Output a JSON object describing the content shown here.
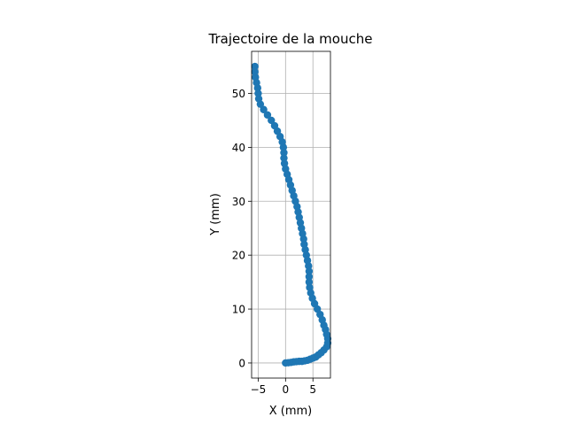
{
  "chart_data": {
    "type": "scatter",
    "title": "Trajectoire de la mouche",
    "xlabel": "X (mm)",
    "ylabel": "Y (mm)",
    "xlim": [
      -6.2,
      8.2
    ],
    "ylim": [
      -2.8,
      57.8
    ],
    "xticks": [
      -5,
      0,
      5
    ],
    "yticks": [
      0,
      10,
      20,
      30,
      40,
      50
    ],
    "grid": true,
    "marker_color": "#1f77b4",
    "points": [
      [
        0.0,
        0.0
      ],
      [
        0.5,
        0.05
      ],
      [
        1.0,
        0.1
      ],
      [
        1.5,
        0.2
      ],
      [
        2.0,
        0.25
      ],
      [
        2.5,
        0.3
      ],
      [
        3.0,
        0.3
      ],
      [
        3.5,
        0.4
      ],
      [
        4.0,
        0.5
      ],
      [
        4.5,
        0.7
      ],
      [
        5.0,
        0.9
      ],
      [
        5.5,
        1.1
      ],
      [
        6.0,
        1.5
      ],
      [
        6.5,
        1.9
      ],
      [
        7.0,
        2.4
      ],
      [
        7.5,
        3.0
      ],
      [
        7.7,
        3.7
      ],
      [
        7.7,
        4.5
      ],
      [
        7.5,
        5.3
      ],
      [
        7.3,
        6.2
      ],
      [
        7.0,
        7.0
      ],
      [
        6.7,
        8.0
      ],
      [
        6.3,
        9.0
      ],
      [
        5.8,
        10.0
      ],
      [
        5.3,
        11.0
      ],
      [
        4.9,
        12.0
      ],
      [
        4.6,
        13.0
      ],
      [
        4.4,
        14.0
      ],
      [
        4.3,
        15.0
      ],
      [
        4.3,
        16.0
      ],
      [
        4.3,
        17.0
      ],
      [
        4.2,
        18.0
      ],
      [
        4.0,
        19.0
      ],
      [
        3.8,
        20.0
      ],
      [
        3.6,
        21.0
      ],
      [
        3.4,
        22.0
      ],
      [
        3.3,
        23.0
      ],
      [
        3.1,
        24.0
      ],
      [
        2.9,
        25.0
      ],
      [
        2.7,
        26.0
      ],
      [
        2.5,
        27.0
      ],
      [
        2.3,
        28.0
      ],
      [
        2.1,
        29.0
      ],
      [
        1.8,
        30.0
      ],
      [
        1.5,
        31.0
      ],
      [
        1.2,
        32.0
      ],
      [
        0.9,
        33.0
      ],
      [
        0.6,
        34.0
      ],
      [
        0.3,
        35.0
      ],
      [
        0.0,
        36.0
      ],
      [
        -0.2,
        37.0
      ],
      [
        -0.3,
        38.0
      ],
      [
        -0.3,
        39.0
      ],
      [
        -0.4,
        40.0
      ],
      [
        -0.6,
        41.0
      ],
      [
        -1.0,
        42.0
      ],
      [
        -1.5,
        43.0
      ],
      [
        -2.0,
        44.0
      ],
      [
        -2.6,
        45.0
      ],
      [
        -3.3,
        46.0
      ],
      [
        -4.0,
        47.0
      ],
      [
        -4.6,
        48.0
      ],
      [
        -4.9,
        49.0
      ],
      [
        -5.0,
        50.0
      ],
      [
        -5.1,
        51.0
      ],
      [
        -5.3,
        52.0
      ],
      [
        -5.5,
        53.0
      ],
      [
        -5.6,
        54.0
      ],
      [
        -5.6,
        55.0
      ]
    ]
  }
}
